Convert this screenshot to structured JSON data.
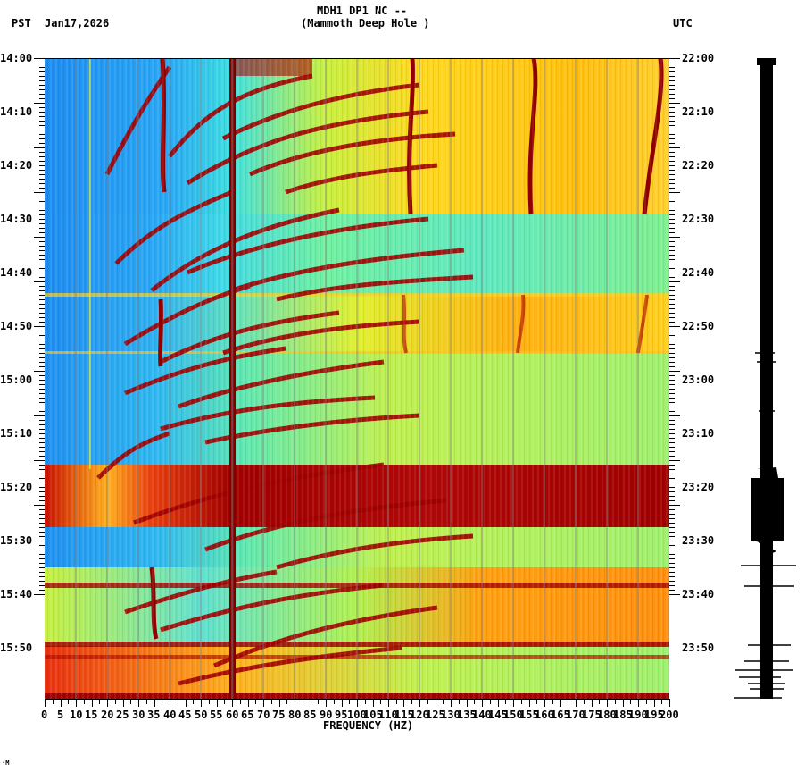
{
  "header": {
    "station_line": "MDH1 DP1 NC --",
    "station_name": "(Mammoth Deep Hole )",
    "left_tz": "PST",
    "date": "Jan17,2026",
    "right_tz": "UTC"
  },
  "footer_mark": "·M",
  "chart_data": {
    "type": "heatmap",
    "title": "MDH1 DP1 NC -- (Mammoth Deep Hole )",
    "subtitle": "Jan17,2026",
    "xlabel": "FREQUENCY (HZ)",
    "ylabel_left": "PST",
    "ylabel_right": "UTC",
    "xlim": [
      0,
      200
    ],
    "x_ticks": [
      0,
      5,
      10,
      15,
      20,
      25,
      30,
      35,
      40,
      45,
      50,
      55,
      60,
      65,
      70,
      75,
      80,
      85,
      90,
      95,
      100,
      105,
      110,
      115,
      120,
      125,
      130,
      135,
      140,
      145,
      150,
      155,
      160,
      165,
      170,
      175,
      180,
      185,
      190,
      195,
      200
    ],
    "y_ticks_left": [
      "14:00",
      "14:10",
      "14:20",
      "14:30",
      "14:40",
      "14:50",
      "15:00",
      "15:10",
      "15:20",
      "15:30",
      "15:40",
      "15:50"
    ],
    "y_ticks_right": [
      "22:00",
      "22:10",
      "22:20",
      "22:30",
      "22:40",
      "22:50",
      "23:00",
      "23:10",
      "23:20",
      "23:30",
      "23:40",
      "23:50"
    ],
    "time_range_pst": [
      "14:00",
      "16:00"
    ],
    "colormap": "jet (blue = low power, dark red = high power)",
    "grid": "vertical lines every 10 Hz",
    "features": [
      {
        "type": "persistent line",
        "frequency_hz": 60,
        "note": "strong dark-red vertical line (power line)"
      },
      {
        "type": "persistent line",
        "frequency_hz": 15,
        "note": "faint yellow vertical line"
      },
      {
        "type": "wandering line",
        "frequency_hz_range": [
          115,
          118
        ],
        "time_range_pst": [
          "14:00",
          "14:30"
        ]
      },
      {
        "type": "wandering line",
        "frequency_hz_range": [
          155,
          160
        ],
        "time_range_pst": [
          "14:00",
          "14:30"
        ]
      },
      {
        "type": "wandering line",
        "frequency_hz_range": [
          190,
          198
        ],
        "time_range_pst": [
          "14:00",
          "14:30"
        ]
      },
      {
        "type": "curved harmonics",
        "note": "repeating sweeping dark-red arcs rising from low to high frequency, roughly every 4-6 minutes"
      },
      {
        "type": "broadband event",
        "time_range_pst": [
          "15:17",
          "15:27"
        ],
        "note": "high power across all frequencies"
      },
      {
        "type": "broadband bands",
        "time_range_pst": [
          "15:50",
          "16:00"
        ],
        "note": "intermittent high-power stripes"
      }
    ],
    "regions": [
      {
        "time_pst": [
          "14:00",
          "14:29"
        ],
        "low_freq_color": "blue",
        "high_freq_color": "yellow-orange"
      },
      {
        "time_pst": [
          "14:29",
          "14:44"
        ],
        "low_freq_color": "blue",
        "high_freq_color": "cyan-green"
      },
      {
        "time_pst": [
          "14:44",
          "14:55"
        ],
        "low_freq_color": "blue",
        "high_freq_color": "yellow-orange"
      },
      {
        "time_pst": [
          "14:55",
          "15:17"
        ],
        "low_freq_color": "blue",
        "high_freq_color": "green-yellow"
      },
      {
        "time_pst": [
          "15:17",
          "15:27"
        ],
        "low_freq_color": "red",
        "high_freq_color": "dark red"
      },
      {
        "time_pst": [
          "15:27",
          "15:34"
        ],
        "low_freq_color": "blue",
        "high_freq_color": "green-yellow"
      },
      {
        "time_pst": [
          "15:34",
          "15:50"
        ],
        "low_freq_color": "cyan-green",
        "high_freq_color": "orange"
      },
      {
        "time_pst": [
          "15:50",
          "16:00"
        ],
        "low_freq_color": "red-yellow",
        "high_freq_color": "green-yellow"
      }
    ],
    "seismogram": {
      "position": "right of spectrogram",
      "events_pst": [
        "14:55 small",
        "15:17-15:27 large",
        "15:34 spike",
        "15:38 spike",
        "15:50-16:00 several spikes"
      ]
    }
  }
}
